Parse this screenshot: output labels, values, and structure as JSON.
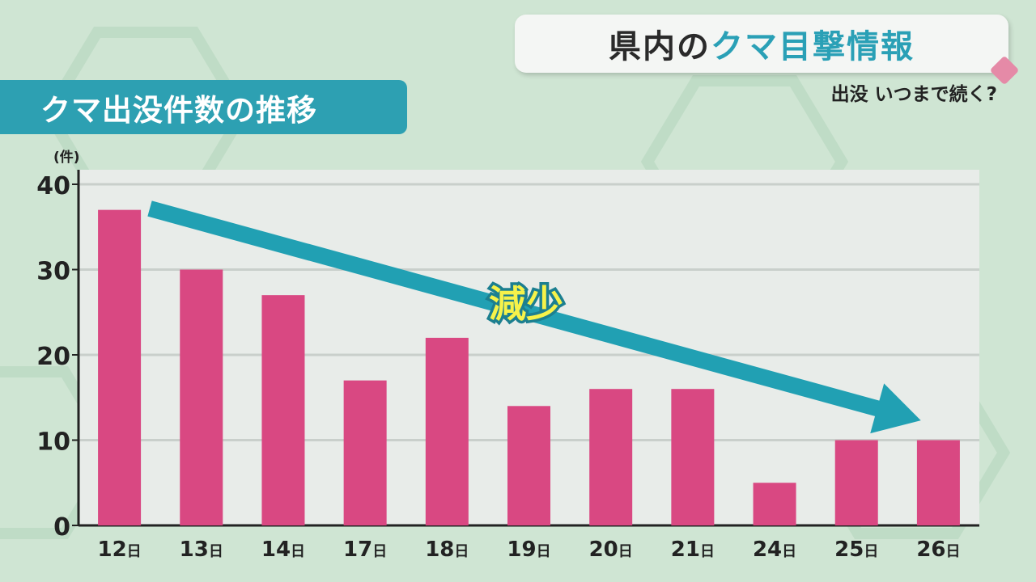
{
  "header": {
    "title_prefix": "県内の",
    "title_accent": "クマ目撃情報",
    "subtitle": "出没 いつまで続く?"
  },
  "section_label": "クマ出没件数の推移",
  "trend_label": "減少",
  "colors": {
    "bar": "#d94882",
    "arrow": "#21a0b3",
    "accent": "#2aa0b6",
    "background": "#cfe5d3",
    "plot_background": "#e8ece9"
  },
  "chart_data": {
    "type": "bar",
    "unit": "(件)",
    "categories": [
      "12日",
      "13日",
      "14日",
      "17日",
      "18日",
      "19日",
      "20日",
      "21日",
      "24日",
      "25日",
      "26日"
    ],
    "values": [
      37,
      30,
      27,
      17,
      22,
      14,
      16,
      16,
      5,
      10,
      10
    ],
    "yticks": [
      "0",
      "10",
      "20",
      "30",
      "40"
    ],
    "ylim": [
      0,
      40
    ],
    "grid": true,
    "annotation": "減少"
  }
}
